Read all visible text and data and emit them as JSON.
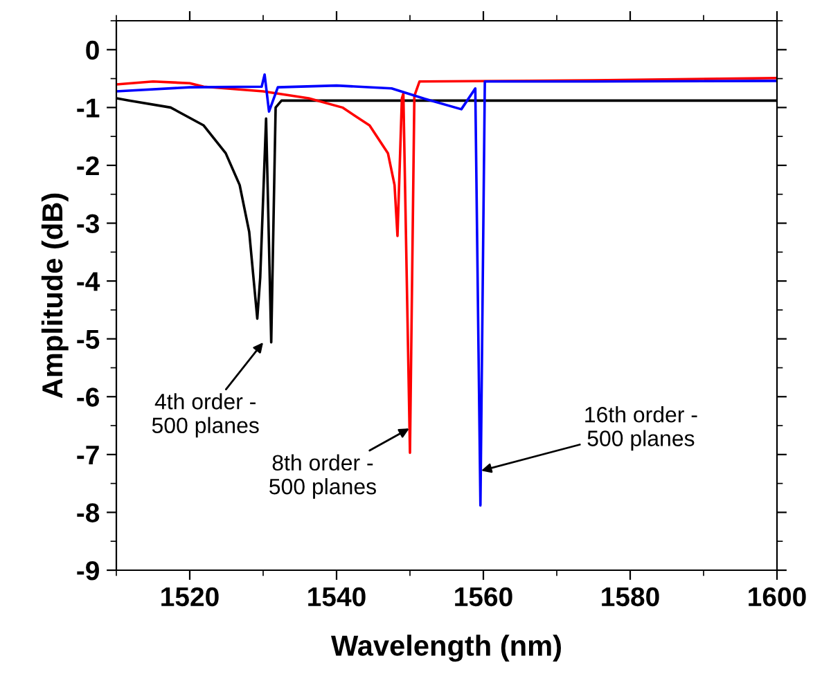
{
  "chart_data": {
    "type": "line",
    "xlabel": "Wavelength (nm)",
    "ylabel": "Amplitude (dB)",
    "xlim": [
      1510,
      1600
    ],
    "xticks": [
      1520,
      1540,
      1560,
      1580,
      1600
    ],
    "ylim": [
      -9,
      0.5
    ],
    "yticks": [
      -9,
      -8,
      -7,
      -6,
      -5,
      -4,
      -3,
      -2,
      -1,
      0
    ],
    "grid": false,
    "marker": "none",
    "line_style": "solid",
    "series": [
      {
        "color": "#000000",
        "x": [
          1510,
          1511.7,
          1517.4,
          1521.9,
          1524.9,
          1526.8,
          1528.1,
          1529.2,
          1529.6,
          1530.4,
          1531.1,
          1531.7,
          1532.5,
          1550,
          1575,
          1600
        ],
        "values": [
          -0.84,
          -0.88,
          -1.0,
          -1.31,
          -1.79,
          -2.34,
          -3.15,
          -4.65,
          -3.94,
          -1.19,
          -5.06,
          -1.0,
          -0.88,
          -0.88,
          -0.88,
          -0.88
        ]
      },
      {
        "color": "#ff0000",
        "x": [
          1510,
          1515,
          1520,
          1521.9,
          1530,
          1536.2,
          1540.8,
          1544.5,
          1547,
          1547.9,
          1548.3,
          1548.9,
          1549.1,
          1550.0,
          1550.6,
          1551.3,
          1575,
          1600
        ],
        "values": [
          -0.6,
          -0.55,
          -0.58,
          -0.64,
          -0.72,
          -0.84,
          -1.0,
          -1.31,
          -1.79,
          -2.34,
          -3.22,
          -0.84,
          -0.76,
          -6.97,
          -0.8,
          -0.55,
          -0.53,
          -0.49
        ]
      },
      {
        "color": "#0000ff",
        "x": [
          1510,
          1520,
          1529.8,
          1530.2,
          1530.8,
          1532,
          1540,
          1547.5,
          1552,
          1557,
          1558.9,
          1559.6,
          1560.2,
          1575,
          1600
        ],
        "values": [
          -0.72,
          -0.65,
          -0.64,
          -0.43,
          -1.07,
          -0.65,
          -0.62,
          -0.67,
          -0.85,
          -1.03,
          -0.67,
          -7.88,
          -0.55,
          -0.55,
          -0.54
        ]
      }
    ],
    "annotations": [
      {
        "text": "4th order -\n500 planes",
        "x": 1530,
        "y": -5.06
      },
      {
        "text": "8th order -\n500 planes",
        "x": 1549.9,
        "y": -6.55
      },
      {
        "text": "16th order -\n500 planes",
        "x": 1559.7,
        "y": -7.28
      }
    ]
  }
}
